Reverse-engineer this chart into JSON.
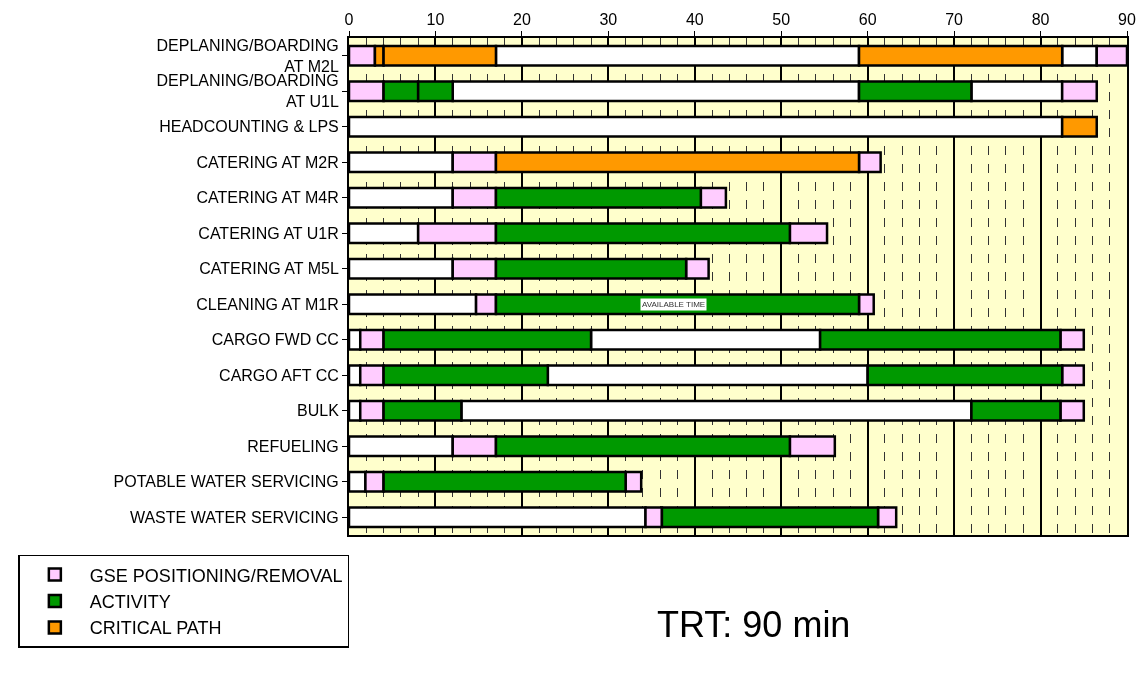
{
  "chart_data": {
    "type": "bar",
    "orientation": "horizontal",
    "categories": [
      "DEPLANING/BOARDING AT M2L",
      "DEPLANING/BOARDING AT U1L",
      "HEADCOUNTING & LPS",
      "CATERING AT M2R",
      "CATERING AT M4R",
      "CATERING AT U1R",
      "CATERING AT M5L",
      "CLEANING AT M1R",
      "CARGO FWD CC",
      "CARGO AFT CC",
      "BULK",
      "REFUELING",
      "POTABLE WATER SERVICING",
      "WASTE WATER SERVICING"
    ],
    "series": [
      {
        "color": "#ffffff",
        "base": [
          17,
          12,
          0,
          0,
          0,
          0,
          0,
          0,
          0,
          0,
          0,
          0,
          0,
          0
        ],
        "values": [
          42,
          47,
          82.5,
          12,
          12,
          8,
          12,
          14.7,
          1.3,
          1.3,
          1.3,
          12,
          1.9,
          34.3
        ]
      },
      {
        "color": "#ffffff",
        "base": [
          82.5,
          72,
          null,
          null,
          null,
          null,
          null,
          null,
          28,
          23,
          13,
          null,
          null,
          null
        ],
        "values": [
          4,
          10.5,
          null,
          null,
          null,
          null,
          null,
          null,
          26.5,
          37,
          59,
          null,
          null,
          null
        ]
      },
      {
        "name": "GSE POSITIONING/REMOVAL",
        "color": "#ffccff",
        "base": [
          0,
          0,
          null,
          12,
          12,
          8,
          12,
          14.7,
          1.3,
          1.3,
          1.3,
          12,
          1.9,
          34.3
        ],
        "values": [
          3,
          4,
          null,
          5,
          5,
          9,
          5,
          2.3,
          2.7,
          2.7,
          2.7,
          5,
          2.1,
          1.9
        ]
      },
      {
        "color": "#ffccff",
        "base": [
          86.5,
          82.5,
          null,
          59,
          40.7,
          51,
          39,
          59,
          82.3,
          82.5,
          82.3,
          51,
          32,
          61.2
        ],
        "values": [
          3.5,
          4,
          null,
          2.5,
          2.9,
          4.3,
          2.6,
          1.7,
          2.7,
          2.5,
          2.7,
          5.2,
          1.8,
          2.1
        ]
      },
      {
        "name": "ACTIVITY",
        "color": "#009900",
        "base": [
          null,
          4,
          null,
          null,
          17,
          17,
          17,
          17,
          4,
          4,
          4,
          17,
          4,
          36.2
        ],
        "values": [
          null,
          4,
          null,
          null,
          23.7,
          34,
          22,
          42,
          24,
          19,
          9,
          34,
          28,
          25
        ]
      },
      {
        "color": "#009900",
        "base": [
          null,
          8,
          null,
          null,
          null,
          null,
          null,
          null,
          54.5,
          60,
          72,
          null,
          null,
          null
        ],
        "values": [
          null,
          4,
          null,
          null,
          null,
          null,
          null,
          null,
          27.8,
          22.5,
          10.3,
          null,
          null,
          null
        ]
      },
      {
        "color": "#009900",
        "base": [
          null,
          59,
          null,
          null,
          null,
          null,
          null,
          null,
          null,
          null,
          null,
          null,
          null,
          null
        ],
        "values": [
          null,
          13,
          null,
          null,
          null,
          null,
          null,
          null,
          null,
          null,
          null,
          null,
          null,
          null
        ]
      },
      {
        "name": "CRITICAL PATH",
        "color": "#ff9900",
        "base": [
          3,
          null,
          82.5,
          17,
          null,
          null,
          null,
          null,
          null,
          null,
          null,
          null,
          null,
          null
        ],
        "values": [
          1,
          null,
          4,
          42,
          null,
          null,
          null,
          null,
          null,
          null,
          null,
          null,
          null,
          null
        ]
      },
      {
        "color": "#ff9900",
        "base": [
          4,
          null,
          null,
          null,
          null,
          null,
          null,
          null,
          null,
          null,
          null,
          null,
          null,
          null
        ],
        "values": [
          13,
          null,
          null,
          null,
          null,
          null,
          null,
          null,
          null,
          null,
          null,
          null,
          null,
          null
        ]
      },
      {
        "color": "#ff9900",
        "base": [
          59,
          null,
          null,
          null,
          null,
          null,
          null,
          null,
          null,
          null,
          null,
          null,
          null,
          null
        ],
        "values": [
          23.5,
          null,
          null,
          null,
          null,
          null,
          null,
          null,
          null,
          null,
          null,
          null,
          null,
          null
        ]
      }
    ],
    "xlim": [
      0,
      90
    ],
    "xticks": [
      0,
      10,
      20,
      30,
      40,
      50,
      60,
      70,
      80,
      90
    ],
    "grid": "x",
    "legend": "bottom left",
    "annotations": [
      "AVAILABLE TIME",
      "TRT: 90 min"
    ]
  }
}
